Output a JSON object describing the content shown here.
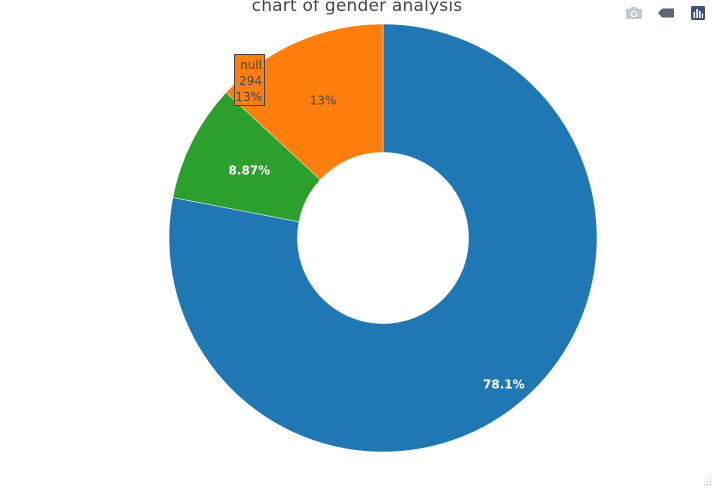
{
  "title": "chart of gender analysis",
  "modebar": {
    "icons": [
      "camera-icon",
      "tag-icon",
      "bar-chart-icon"
    ]
  },
  "chart_data": {
    "type": "pie",
    "hole": 0.4,
    "title": "chart of gender analysis",
    "slices": [
      {
        "label": "",
        "percent_text": "78.1%",
        "value_share": 0.7803,
        "color": "#1f77b4",
        "text_color": "#ffffff",
        "bold": true
      },
      {
        "label": "",
        "percent_text": "8.87%",
        "value_share": 0.0887,
        "color": "#2ca02c",
        "text_color": "#ffffff",
        "bold": true
      },
      {
        "label": "null",
        "percent_text": "13%",
        "value": 294,
        "value_share": 0.131,
        "color": "#ff7f0e",
        "text_color": "#444444",
        "bold": false
      }
    ]
  },
  "hover": {
    "label": "null",
    "value": "294",
    "percent": "13%"
  }
}
